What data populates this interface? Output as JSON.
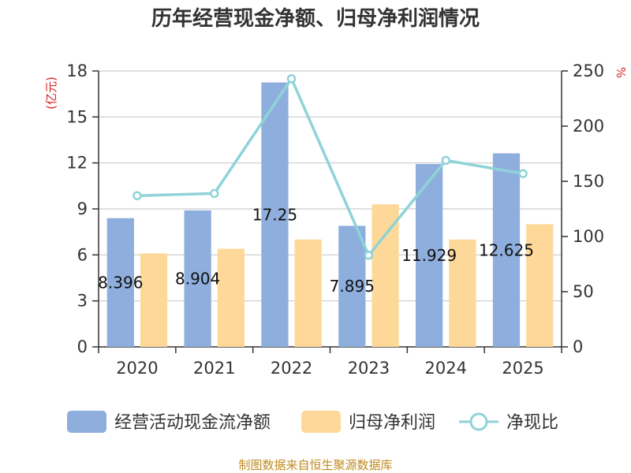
{
  "chart_data": {
    "type": "bar",
    "title": "历年经营现金净额、归母净利润情况",
    "categories": [
      "2020",
      "2021",
      "2022",
      "2023",
      "2024",
      "2025"
    ],
    "series": [
      {
        "name": "经营活动现金流净额",
        "axis": "left",
        "color": "#8eaedd",
        "values": [
          8.396,
          8.904,
          17.25,
          7.895,
          11.929,
          12.625
        ],
        "labels": [
          "8.396",
          "8.904",
          "17.25",
          "7.895",
          "11.929",
          "12.625"
        ]
      },
      {
        "name": "归母净利润",
        "axis": "left",
        "color": "#fdd898",
        "values": [
          6.1,
          6.4,
          7.0,
          9.3,
          7.0,
          8.0
        ]
      },
      {
        "name": "净现比",
        "axis": "right",
        "type": "line",
        "color": "#8fd3d8",
        "values": [
          137,
          139,
          243,
          83,
          169,
          157
        ]
      }
    ],
    "y_left": {
      "label": "(亿元)",
      "min": 0,
      "max": 18,
      "ticks": [
        "0",
        "3",
        "6",
        "9",
        "12",
        "15",
        "18"
      ]
    },
    "y_right": {
      "label": "%",
      "min": 0,
      "max": 250,
      "ticks": [
        "0",
        "50",
        "100",
        "150",
        "200",
        "250"
      ]
    },
    "grid": true,
    "legend": "bottom",
    "source": "制图数据来自恒生聚源数据库"
  }
}
